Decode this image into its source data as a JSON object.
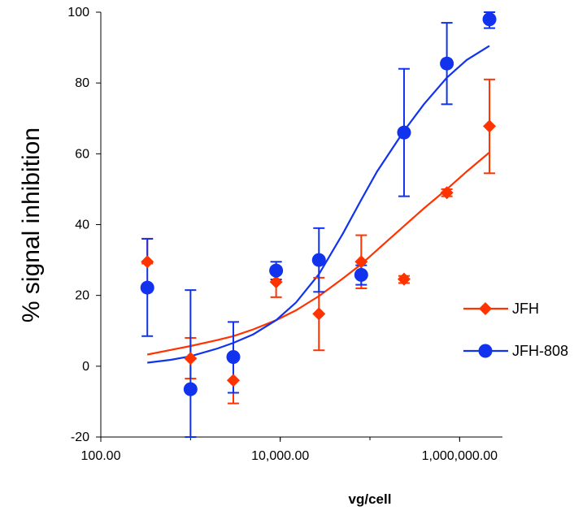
{
  "chart_data": {
    "type": "scatter",
    "xlabel": "vg/cell",
    "ylabel": "% signal inhibition",
    "x_scale": "log",
    "xlim": [
      100,
      3000000
    ],
    "ylim": [
      -20,
      100
    ],
    "x_ticks": [
      100,
      10000,
      1000000
    ],
    "x_tick_labels": [
      "100.00",
      "10,000.00",
      "1,000,000.00"
    ],
    "y_ticks": [
      -20,
      0,
      20,
      40,
      60,
      80,
      100
    ],
    "y_tick_labels": [
      "-20",
      "0",
      "20",
      "40",
      "60",
      "80",
      "100"
    ],
    "grid": false,
    "legend_position": "right",
    "series": [
      {
        "name": "JFH",
        "color": "#ff3300",
        "marker": "diamond",
        "x": [
          330,
          1000,
          3000,
          9000,
          27000,
          80000,
          240000,
          720000,
          2150000
        ],
        "y": [
          29.5,
          2.2,
          -4.0,
          23.8,
          14.8,
          29.5,
          24.6,
          49.0,
          67.8
        ],
        "err_low": [
          29.0,
          -3.5,
          -10.5,
          19.5,
          4.5,
          22.0,
          23.5,
          48.0,
          54.5
        ],
        "err_high": [
          36.0,
          8.0,
          2.5,
          28.0,
          25.0,
          37.0,
          25.5,
          50.0,
          81.0
        ],
        "fit_curve": {
          "x": [
            330,
            600,
            1000,
            2000,
            3000,
            5000,
            9000,
            15000,
            27000,
            50000,
            80000,
            150000,
            240000,
            400000,
            720000,
            1200000,
            2150000
          ],
          "y": [
            3.3,
            4.6,
            5.7,
            7.4,
            8.5,
            10.4,
            13.0,
            15.8,
            19.8,
            24.8,
            28.8,
            35.0,
            39.6,
            44.6,
            50.0,
            55.0,
            60.4
          ]
        }
      },
      {
        "name": "JFH-808",
        "color": "#1133ee",
        "marker": "circle",
        "x": [
          330,
          1000,
          3000,
          9000,
          27000,
          80000,
          240000,
          720000,
          2150000
        ],
        "y": [
          22.2,
          -6.5,
          2.6,
          27.0,
          30.0,
          25.8,
          66.0,
          85.5,
          98.0
        ],
        "err_low": [
          8.5,
          -20.0,
          -7.5,
          24.5,
          21.0,
          23.0,
          48.0,
          74.0,
          95.5
        ],
        "err_high": [
          36.0,
          21.5,
          12.5,
          29.5,
          39.0,
          28.5,
          84.0,
          97.0,
          100.0
        ],
        "fit_curve": {
          "x": [
            330,
            600,
            1000,
            2000,
            3000,
            5000,
            9000,
            15000,
            27000,
            50000,
            80000,
            120000,
            240000,
            400000,
            720000,
            1200000,
            2150000
          ],
          "y": [
            1.0,
            1.8,
            2.8,
            5.0,
            6.6,
            9.0,
            13.0,
            18.0,
            26.0,
            37.5,
            47.0,
            55.0,
            66.5,
            74.0,
            81.5,
            86.5,
            90.5
          ]
        }
      }
    ]
  }
}
